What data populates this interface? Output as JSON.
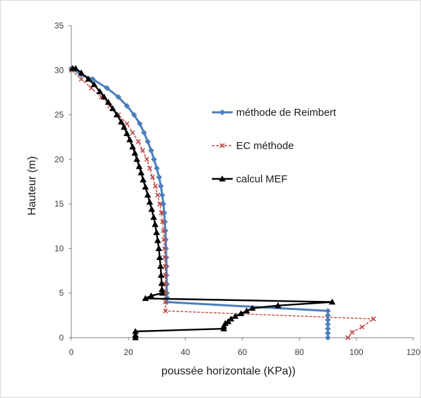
{
  "chart_data": {
    "type": "line",
    "xlabel": "poussée horizontale (KPa))",
    "ylabel": "Hauteur (m)",
    "xlim": [
      0,
      120
    ],
    "ylim": [
      0,
      35
    ],
    "xticks": [
      0,
      20,
      40,
      60,
      80,
      100,
      120
    ],
    "yticks": [
      0,
      5,
      10,
      15,
      20,
      25,
      30,
      35
    ],
    "grid": false,
    "legend_position": "right-middle",
    "series": [
      {
        "name": "méthode de Reimbert",
        "color": "#4a7ebb",
        "marker": "diamond",
        "points": [
          [
            0,
            30.2
          ],
          [
            3.5,
            29.5
          ],
          [
            7.5,
            29
          ],
          [
            12.5,
            28
          ],
          [
            16.5,
            27
          ],
          [
            19.5,
            26
          ],
          [
            22,
            25
          ],
          [
            24,
            24
          ],
          [
            25.5,
            23
          ],
          [
            26.8,
            22
          ],
          [
            28,
            21
          ],
          [
            29,
            20
          ],
          [
            30,
            19
          ],
          [
            30.8,
            18
          ],
          [
            31.4,
            17
          ],
          [
            31.9,
            16
          ],
          [
            32.3,
            15
          ],
          [
            32.6,
            14
          ],
          [
            32.8,
            13
          ],
          [
            33,
            12
          ],
          [
            33.1,
            11
          ],
          [
            33.2,
            10
          ],
          [
            33.3,
            9
          ],
          [
            33.4,
            8
          ],
          [
            33.4,
            7
          ],
          [
            33.5,
            6
          ],
          [
            33.5,
            5
          ],
          [
            33.5,
            4.5
          ],
          [
            33.5,
            4
          ],
          [
            90,
            3
          ],
          [
            90,
            2.5
          ],
          [
            90,
            2
          ],
          [
            90,
            1.5
          ],
          [
            90,
            1
          ],
          [
            90,
            0.5
          ],
          [
            90,
            0
          ]
        ]
      },
      {
        "name": "EC méthode",
        "color": "#be4b48",
        "marker": "x",
        "points": [
          [
            0,
            30
          ],
          [
            3.5,
            29
          ],
          [
            7,
            28
          ],
          [
            10.5,
            27
          ],
          [
            13.5,
            26
          ],
          [
            16.5,
            25
          ],
          [
            19.5,
            24
          ],
          [
            21.5,
            23
          ],
          [
            23.5,
            22
          ],
          [
            25,
            21
          ],
          [
            26.5,
            20
          ],
          [
            27.5,
            19
          ],
          [
            28.5,
            18
          ],
          [
            29.5,
            17
          ],
          [
            30.3,
            16
          ],
          [
            31,
            15
          ],
          [
            31.6,
            14
          ],
          [
            32,
            13
          ],
          [
            32.3,
            12
          ],
          [
            32.5,
            11
          ],
          [
            32.7,
            10
          ],
          [
            32.8,
            9
          ],
          [
            32.9,
            8
          ],
          [
            33,
            7
          ],
          [
            33,
            6
          ],
          [
            33,
            5
          ],
          [
            33,
            4
          ],
          [
            33,
            3
          ],
          [
            106,
            2.1
          ],
          [
            102,
            1.2
          ],
          [
            98.5,
            0.6
          ],
          [
            97,
            0
          ]
        ]
      },
      {
        "name": "calcul MEF",
        "color": "#000000",
        "marker": "triangle",
        "points": [
          [
            0.5,
            30.2
          ],
          [
            1.5,
            30.2
          ],
          [
            3.5,
            29.7
          ],
          [
            6,
            29
          ],
          [
            8,
            28.4
          ],
          [
            10,
            27.6
          ],
          [
            11.5,
            27
          ],
          [
            13,
            26.4
          ],
          [
            14.5,
            25.7
          ],
          [
            16,
            25
          ],
          [
            17.5,
            24.2
          ],
          [
            18.5,
            23.6
          ],
          [
            19.5,
            22.9
          ],
          [
            20.5,
            22.2
          ],
          [
            21.5,
            21.4
          ],
          [
            22.3,
            20.7
          ],
          [
            23,
            20
          ],
          [
            23.8,
            19.2
          ],
          [
            24.5,
            18.5
          ],
          [
            25.2,
            17.7
          ],
          [
            26,
            16.9
          ],
          [
            26.8,
            16
          ],
          [
            27.5,
            15.2
          ],
          [
            28.2,
            14.4
          ],
          [
            28.9,
            13.5
          ],
          [
            29.4,
            12.7
          ],
          [
            29.9,
            11.8
          ],
          [
            30.3,
            10.9
          ],
          [
            30.7,
            10
          ],
          [
            31,
            9
          ],
          [
            31.3,
            8
          ],
          [
            31.5,
            7
          ],
          [
            31.7,
            6.1
          ],
          [
            31.8,
            5.4
          ],
          [
            31.9,
            5
          ],
          [
            28,
            4.7
          ],
          [
            26,
            4.4
          ],
          [
            91.5,
            4
          ],
          [
            72.5,
            3.6
          ],
          [
            63.5,
            3.3
          ],
          [
            61.5,
            3
          ],
          [
            59.5,
            2.7
          ],
          [
            57.5,
            2.4
          ],
          [
            56,
            2.1
          ],
          [
            55,
            1.8
          ],
          [
            54,
            1.6
          ],
          [
            53.5,
            1.3
          ],
          [
            53.5,
            1
          ],
          [
            22.5,
            0.7
          ],
          [
            22.5,
            0.3
          ],
          [
            22.5,
            0
          ]
        ]
      }
    ]
  }
}
